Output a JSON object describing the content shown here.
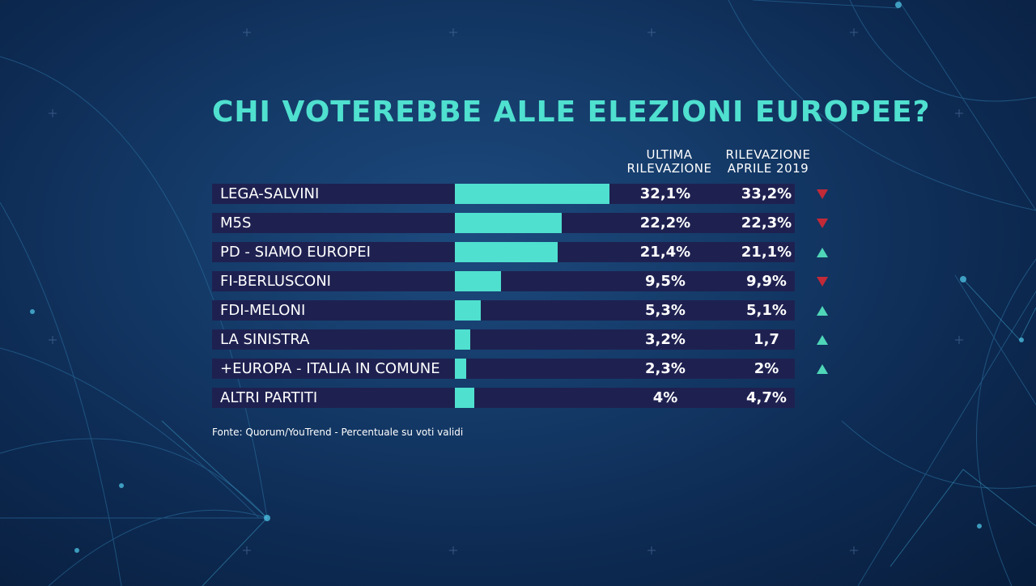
{
  "chart_data": {
    "type": "bar",
    "title": "CHI VOTEREBBE ALLE ELEZIONI EUROPEE?",
    "columns": [
      {
        "line1": "ULTIMA",
        "line2": "RILEVAZIONE"
      },
      {
        "line1": "RILEVAZIONE",
        "line2": "APRILE 2019"
      }
    ],
    "categories": [
      "LEGA-SALVINI",
      "M5S",
      "PD - SIAMO EUROPEI",
      "FI-BERLUSCONI",
      "FDI-MELONI",
      "LA SINISTRA",
      "+EUROPA - ITALIA IN COMUNE",
      "ALTRI PARTITI"
    ],
    "series": [
      {
        "values": [
          32.1,
          22.2,
          21.4,
          9.5,
          5.3,
          3.2,
          2.3,
          4
        ],
        "labels": [
          "32,1%",
          "22,2%",
          "21,4%",
          "9,5%",
          "5,3%",
          "3,2%",
          "2,3%",
          "4%"
        ]
      },
      {
        "values": [
          33.2,
          22.3,
          21.1,
          9.9,
          5.1,
          1.7,
          2,
          4.7
        ],
        "labels": [
          "33,2%",
          "22,3%",
          "21,1%",
          "9,9%",
          "5,1%",
          "1,7",
          "2%",
          "4,7%"
        ]
      }
    ],
    "trend": [
      "down",
      "down",
      "up",
      "down",
      "up",
      "up",
      "up",
      ""
    ],
    "colors": {
      "bar": "#4fe0cf",
      "row": "#1e2150",
      "down": "#c22a38",
      "up": "#4fd6b8",
      "title": "#4fe0cf"
    },
    "source": "Fonte: Quorum/YouTrend - Percentuale su voti validi"
  }
}
